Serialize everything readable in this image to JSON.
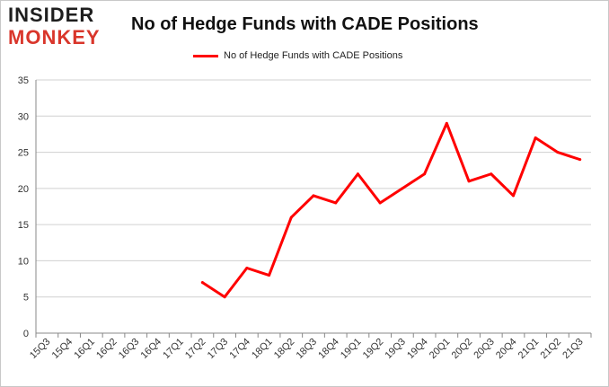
{
  "logo": {
    "line1": "INSIDER",
    "line2": "MONKEY"
  },
  "colors": {
    "series": "#ff0000",
    "grid": "#d0d0d0",
    "axis": "#888888",
    "logo_accent": "#d9362b"
  },
  "chart_data": {
    "type": "line",
    "title": "No of Hedge Funds with CADE Positions",
    "xlabel": "",
    "ylabel": "",
    "legend": "top-center",
    "grid": true,
    "ylim": [
      0,
      35
    ],
    "yticks": [
      0,
      5,
      10,
      15,
      20,
      25,
      30,
      35
    ],
    "categories": [
      "15Q3",
      "15Q4",
      "16Q1",
      "16Q2",
      "16Q3",
      "16Q4",
      "17Q1",
      "17Q2",
      "17Q3",
      "17Q4",
      "18Q1",
      "18Q2",
      "18Q3",
      "18Q4",
      "19Q1",
      "19Q2",
      "19Q3",
      "19Q4",
      "20Q1",
      "20Q2",
      "20Q3",
      "20Q4",
      "21Q1",
      "21Q2",
      "21Q3"
    ],
    "series": [
      {
        "name": "No of Hedge Funds with CADE Positions",
        "values": [
          null,
          null,
          null,
          null,
          null,
          null,
          null,
          7,
          5,
          9,
          8,
          16,
          19,
          18,
          22,
          18,
          20,
          22,
          29,
          21,
          22,
          19,
          27,
          25,
          24
        ]
      }
    ]
  }
}
